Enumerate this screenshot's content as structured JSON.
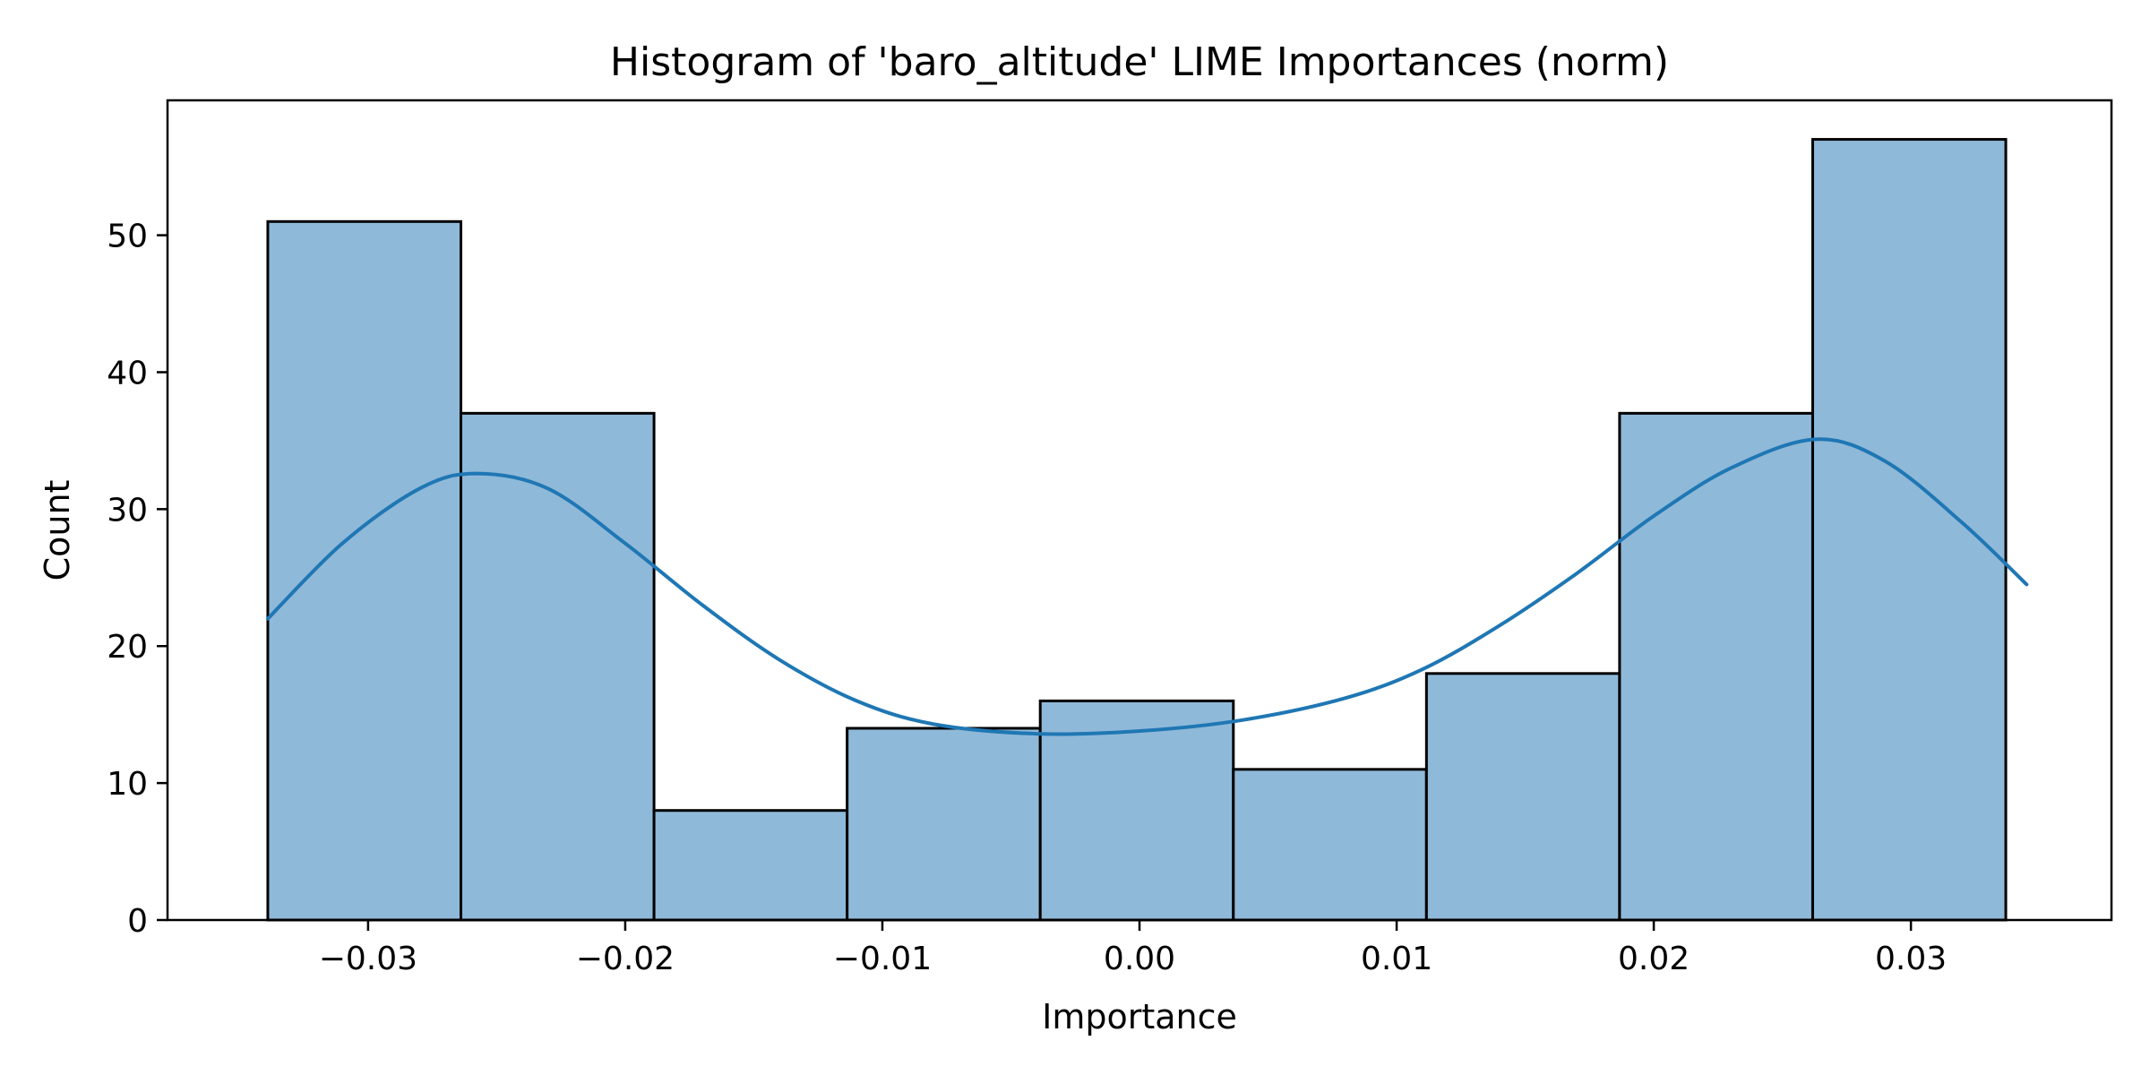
{
  "chart_data": {
    "type": "bar",
    "title": "Histogram of 'baro_altitude' LIME Importances (norm)",
    "xlabel": "Importance",
    "ylabel": "Count",
    "xlim": [
      -0.0378,
      0.0378
    ],
    "ylim": [
      0,
      59.85
    ],
    "bin_edges": [
      -0.0339,
      -0.02639,
      -0.01888,
      -0.01137,
      -0.00386,
      0.00365,
      0.01116,
      0.01867,
      0.02618,
      0.03369
    ],
    "values": [
      51,
      37,
      8,
      14,
      16,
      11,
      18,
      37,
      57
    ],
    "xticks": [
      -0.03,
      -0.02,
      -0.01,
      0.0,
      0.01,
      0.02,
      0.03
    ],
    "xtick_labels": [
      "−0.03",
      "−0.02",
      "−0.01",
      "0.00",
      "0.01",
      "0.02",
      "0.03"
    ],
    "yticks": [
      0,
      10,
      20,
      30,
      40,
      50
    ],
    "ytick_labels": [
      "0",
      "10",
      "20",
      "30",
      "40",
      "50"
    ],
    "kde": {
      "x": [
        -0.0339,
        -0.031,
        -0.028,
        -0.0258,
        -0.023,
        -0.02,
        -0.017,
        -0.014,
        -0.011,
        -0.008,
        -0.004,
        0.0,
        0.004,
        0.008,
        0.011,
        0.014,
        0.017,
        0.02,
        0.023,
        0.0263,
        0.029,
        0.032,
        0.0345
      ],
      "y": [
        22,
        27.5,
        31.5,
        32.6,
        31.5,
        27.5,
        23,
        19,
        16,
        14.3,
        13.6,
        13.8,
        14.6,
        16.2,
        18.3,
        21.5,
        25.3,
        29.5,
        33.0,
        35.1,
        33.5,
        29,
        24.5
      ]
    },
    "bar_fill": "#8fb9d9",
    "bar_edge": "#000000",
    "kde_color": "#1f77b4",
    "grid": false,
    "legend": "none"
  }
}
